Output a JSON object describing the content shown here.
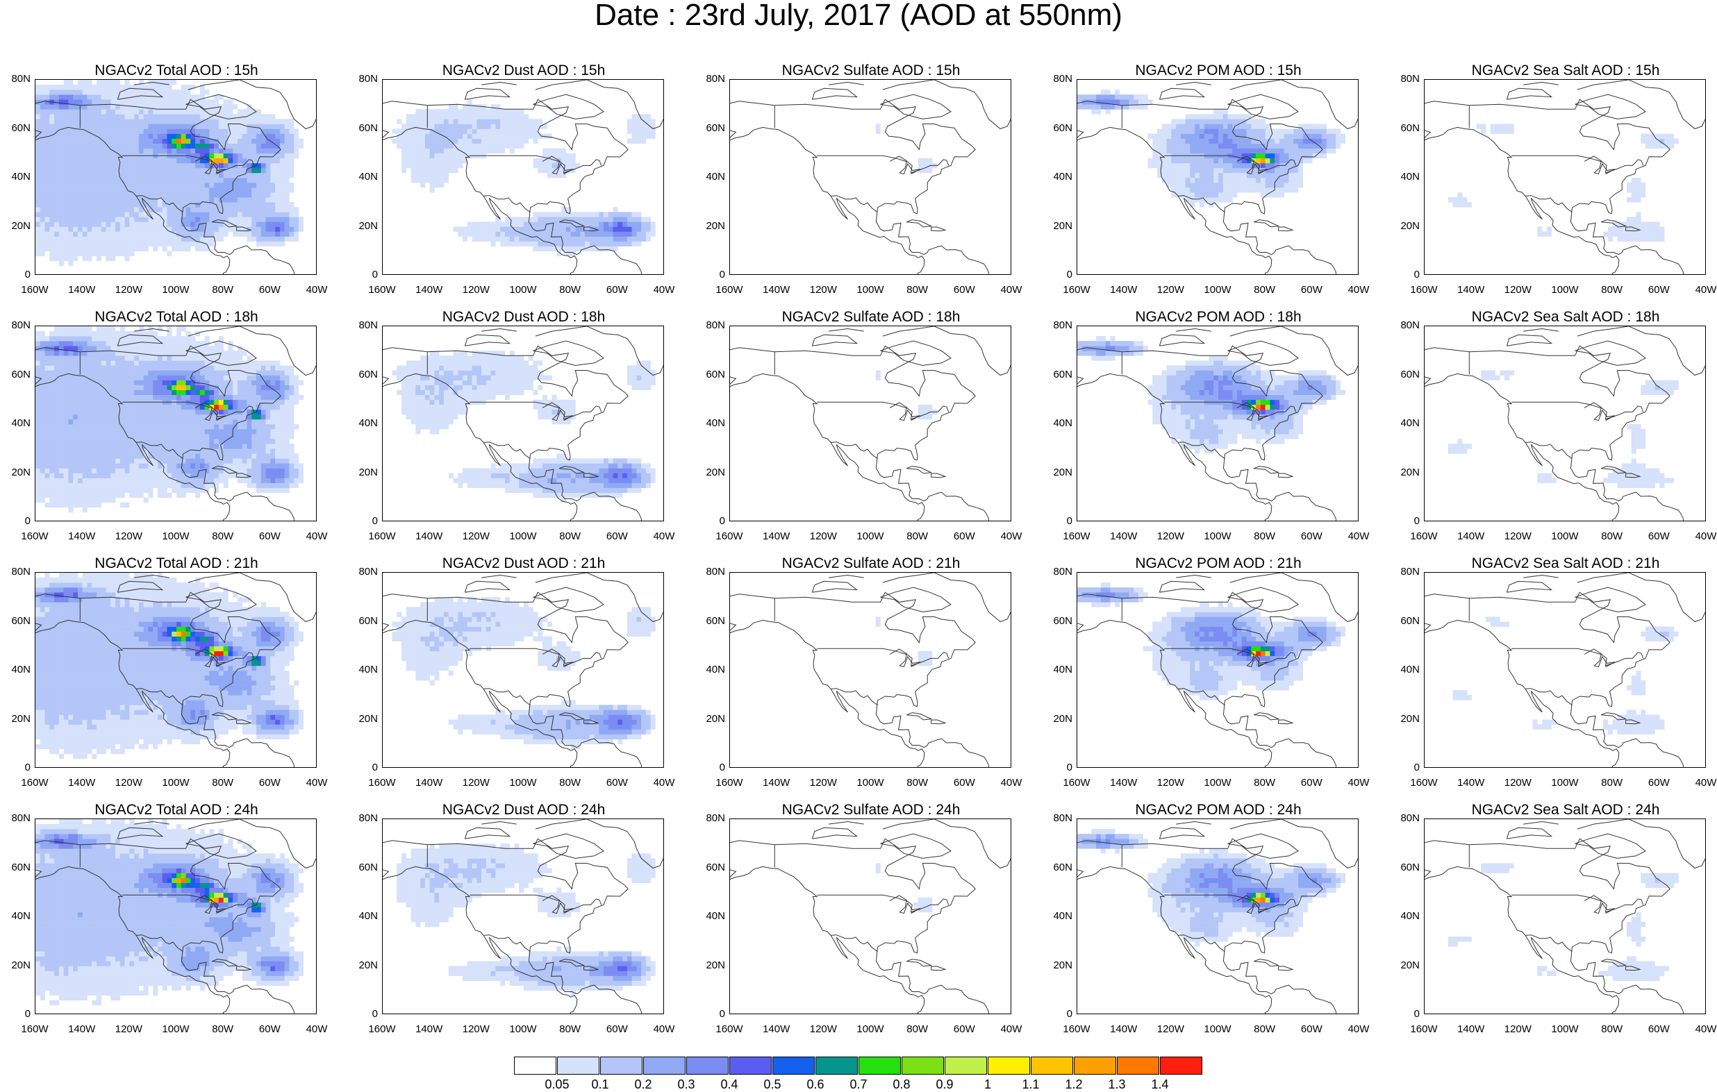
{
  "title": "Date : 23rd July, 2017 (AOD at 550nm)",
  "panels": [
    [
      {
        "title": "NGACv2 Total AOD : 15h",
        "kind": "total"
      },
      {
        "title": "NGACv2 Dust AOD : 15h",
        "kind": "dust"
      },
      {
        "title": "NGACv2 Sulfate AOD : 15h",
        "kind": "sulfate"
      },
      {
        "title": "NGACv2 POM AOD : 15h",
        "kind": "pom"
      },
      {
        "title": "NGACv2 Sea Salt AOD : 15h",
        "kind": "seasalt"
      }
    ],
    [
      {
        "title": "NGACv2 Total AOD : 18h",
        "kind": "total"
      },
      {
        "title": "NGACv2 Dust AOD : 18h",
        "kind": "dust"
      },
      {
        "title": "NGACv2 Sulfate AOD : 18h",
        "kind": "sulfate"
      },
      {
        "title": "NGACv2 POM AOD : 18h",
        "kind": "pom"
      },
      {
        "title": "NGACv2 Sea Salt AOD : 18h",
        "kind": "seasalt"
      }
    ],
    [
      {
        "title": "NGACv2 Total AOD : 21h",
        "kind": "total"
      },
      {
        "title": "NGACv2 Dust AOD : 21h",
        "kind": "dust"
      },
      {
        "title": "NGACv2 Sulfate AOD : 21h",
        "kind": "sulfate"
      },
      {
        "title": "NGACv2 POM AOD : 21h",
        "kind": "pom"
      },
      {
        "title": "NGACv2 Sea Salt AOD : 21h",
        "kind": "seasalt"
      }
    ],
    [
      {
        "title": "NGACv2 Total AOD : 24h",
        "kind": "total"
      },
      {
        "title": "NGACv2 Dust AOD : 24h",
        "kind": "dust"
      },
      {
        "title": "NGACv2 Sulfate AOD : 24h",
        "kind": "sulfate"
      },
      {
        "title": "NGACv2 POM AOD : 24h",
        "kind": "pom"
      },
      {
        "title": "NGACv2 Sea Salt  AOD : 24h",
        "kind": "seasalt"
      }
    ]
  ],
  "lat_ticks": [
    "80N",
    "60N",
    "40N",
    "20N",
    "0"
  ],
  "lon_ticks": [
    "160W",
    "140W",
    "120W",
    "100W",
    "80W",
    "60W",
    "40W"
  ],
  "colorbar": {
    "labels": [
      "0.05",
      "0.1",
      "0.2",
      "0.3",
      "0.4",
      "0.5",
      "0.6",
      "0.7",
      "0.8",
      "0.9",
      "1",
      "1.1",
      "1.2",
      "1.3",
      "1.4"
    ],
    "colors": [
      "#ffffff",
      "#d6e1fb",
      "#b3c6f7",
      "#8fa9f4",
      "#7b8cf2",
      "#5a5ef0",
      "#1461f0",
      "#04958c",
      "#24e010",
      "#7be014",
      "#c2f04a",
      "#fff000",
      "#ffc400",
      "#ffa000",
      "#ff7800",
      "#ff1e10"
    ]
  }
}
